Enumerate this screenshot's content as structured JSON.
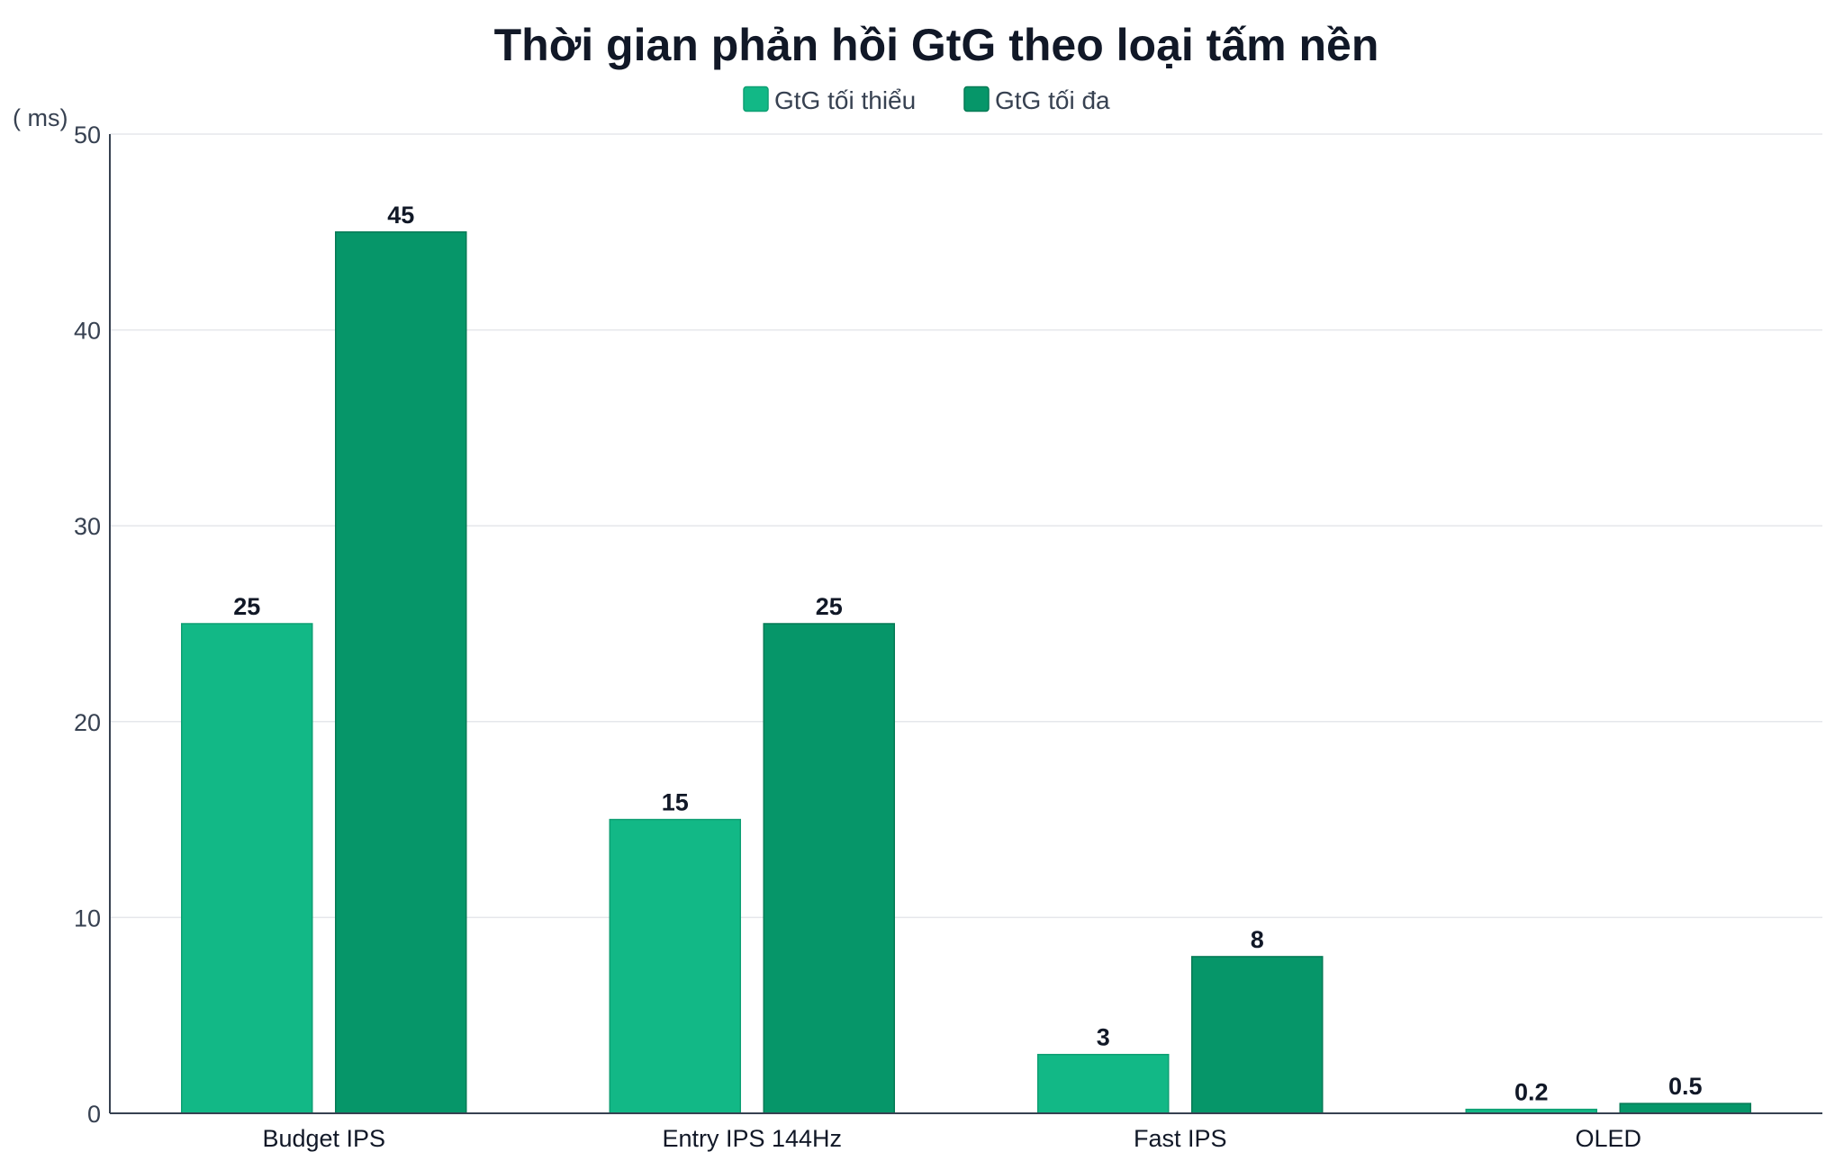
{
  "chart_data": {
    "type": "bar",
    "title": "Thời gian phản hồi GtG theo loại tấm nền",
    "ylabel": "( ms)",
    "xlabel": "",
    "categories": [
      "Budget IPS",
      "Entry IPS 144Hz",
      "Fast IPS",
      "OLED"
    ],
    "series": [
      {
        "name": "GtG tối thiểu",
        "color": "#12b886",
        "values": [
          25,
          15,
          3,
          0.2
        ],
        "labels": [
          "25",
          "15",
          "3",
          "0.2"
        ]
      },
      {
        "name": "GtG tối đa",
        "color": "#069669",
        "values": [
          45,
          25,
          8,
          0.5
        ],
        "labels": [
          "45",
          "25",
          "8",
          "0.5"
        ]
      }
    ],
    "ylim": [
      0,
      50
    ],
    "yticks": [
      0,
      10,
      20,
      30,
      40,
      50
    ],
    "ytick_labels": [
      "0",
      "10",
      "20",
      "30",
      "40",
      "50"
    ],
    "grid": true,
    "legend_position": "top-center"
  }
}
